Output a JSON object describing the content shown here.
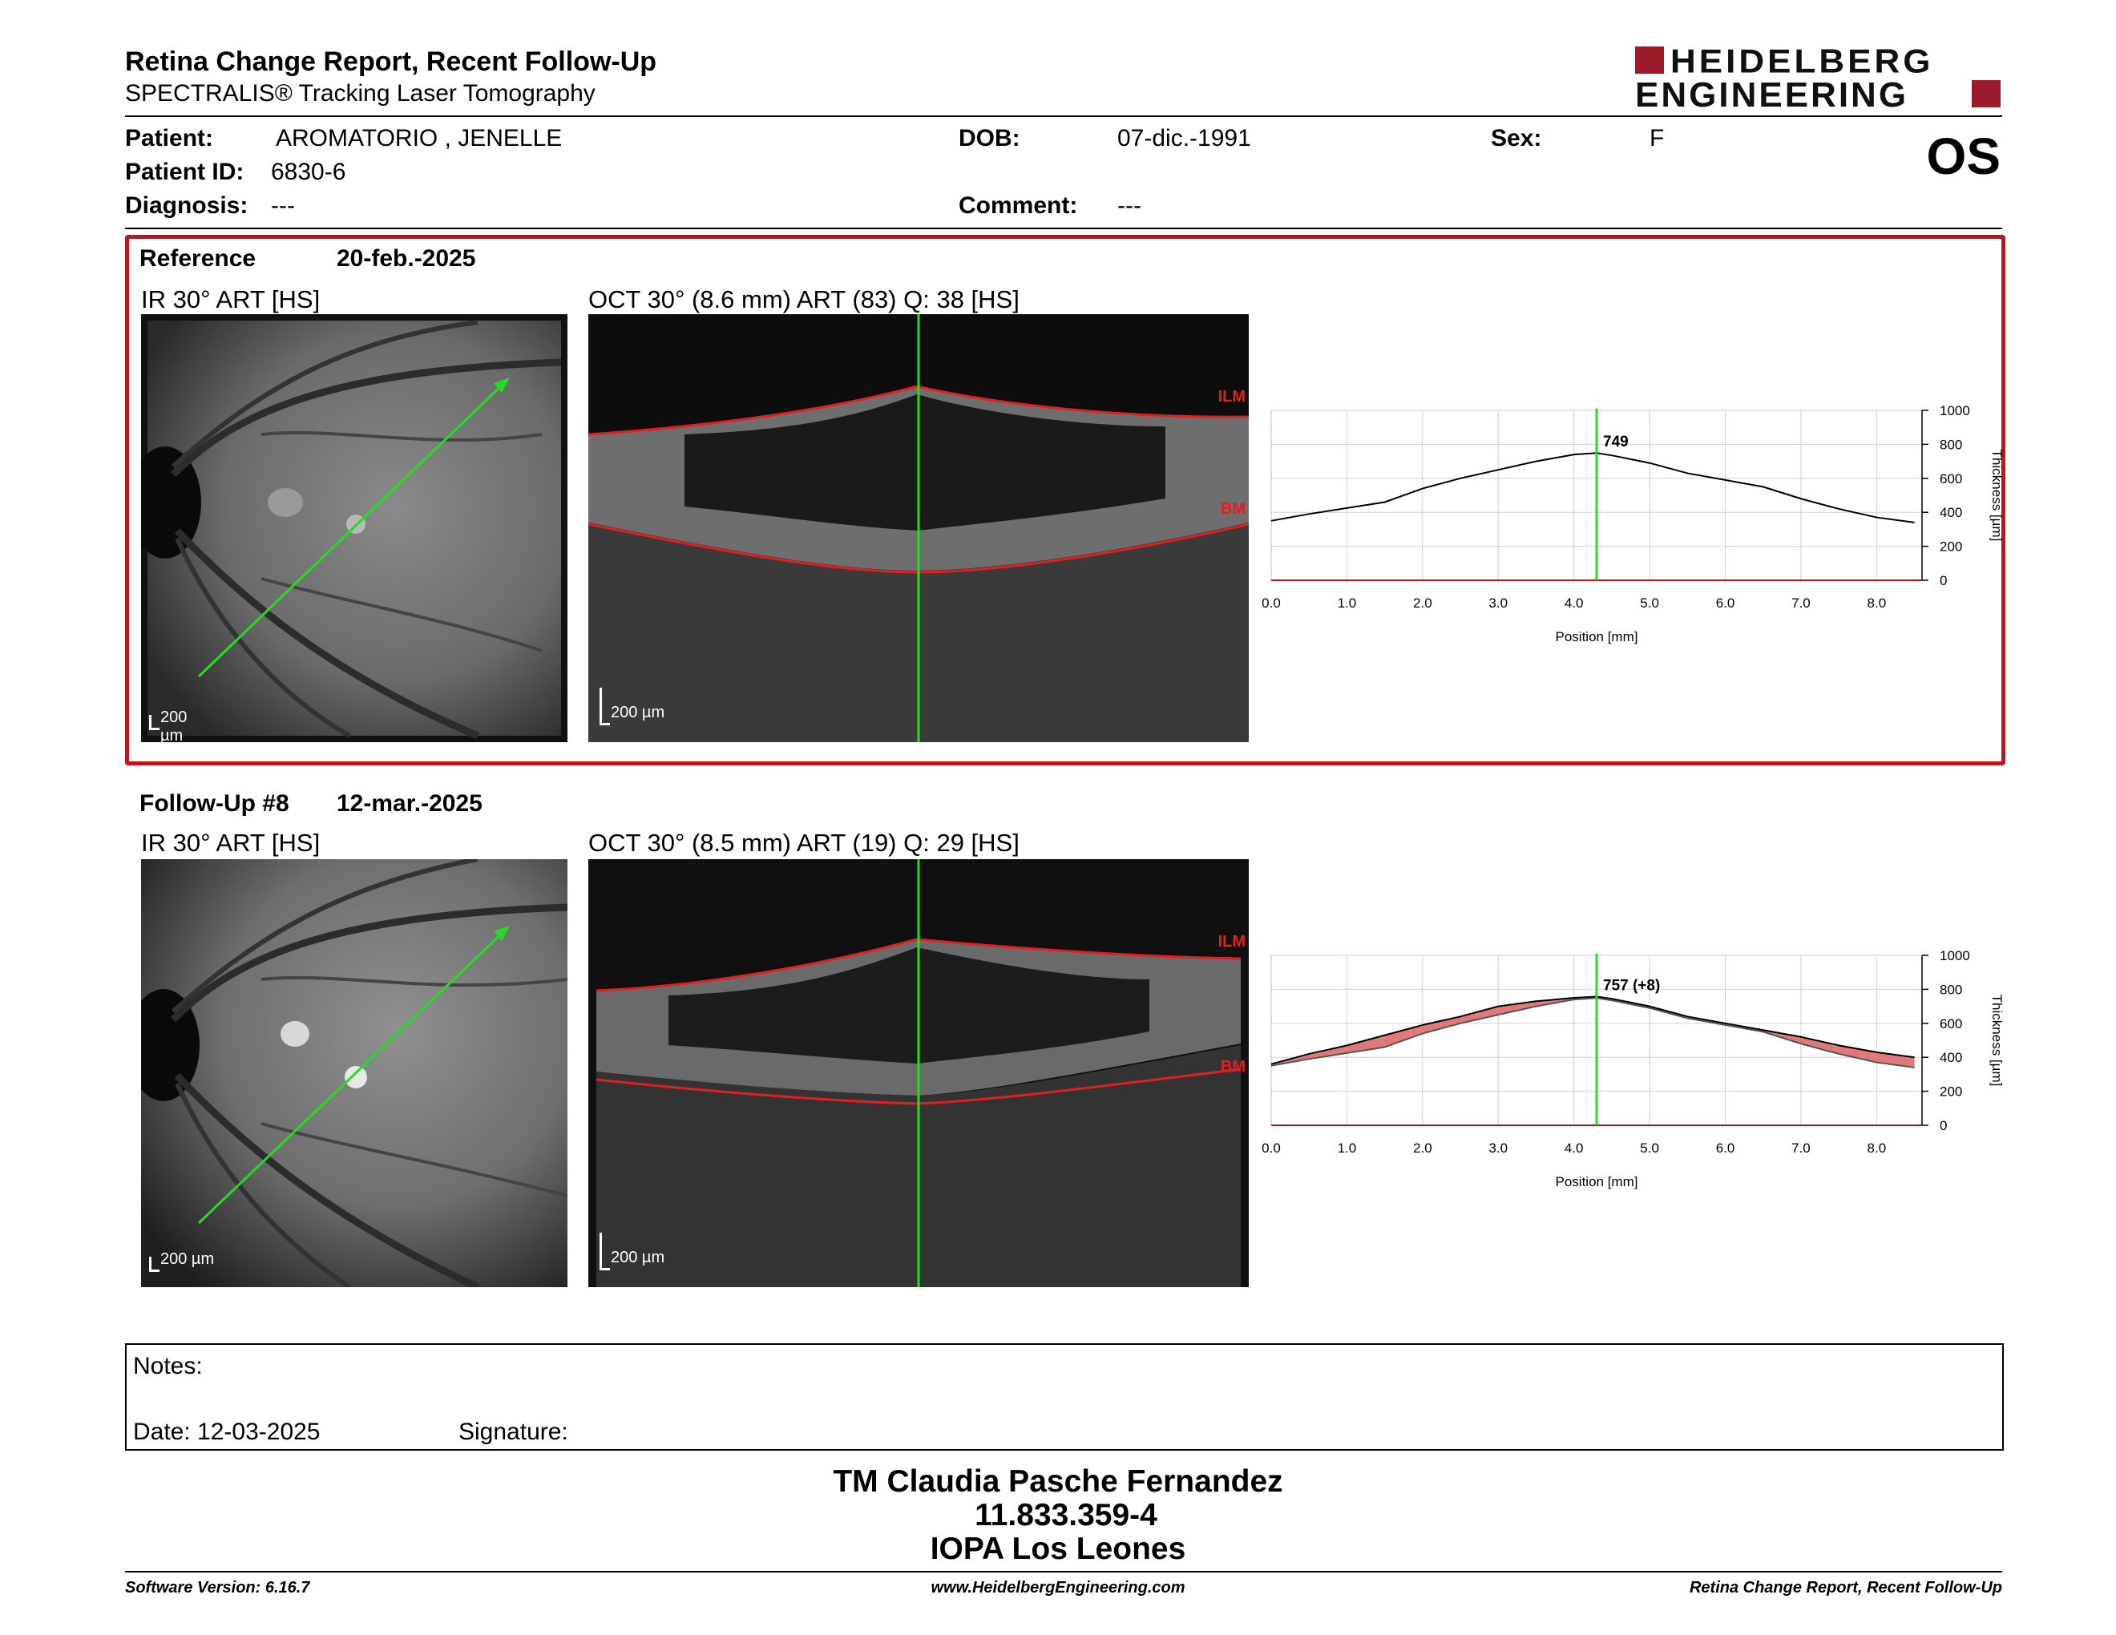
{
  "header": {
    "title": "Retina Change Report, Recent Follow-Up",
    "subtitle": "SPECTRALIS® Tracking Laser Tomography",
    "logo_line1": "HEIDELBERG",
    "logo_line2": "ENGINEERING",
    "eye": "OS"
  },
  "patient": {
    "name_label": "Patient:",
    "name": "AROMATORIO , JENELLE",
    "id_label": "Patient ID:",
    "id": "6830-6",
    "diagnosis_label": "Diagnosis:",
    "diagnosis": "---",
    "dob_label": "DOB:",
    "dob": "07-dic.-1991",
    "comment_label": "Comment:",
    "comment": "---",
    "sex_label": "Sex:",
    "sex": "F"
  },
  "reference": {
    "label": "Reference",
    "date": "20-feb.-2025",
    "ir_title": "IR 30° ART [HS]",
    "oct_title": "OCT 30° (8.6 mm) ART (83) Q: 38 [HS]",
    "scale": "200 µm",
    "ilm": "ILM",
    "bm": "BM",
    "thickness_label": "749"
  },
  "followup": {
    "label": "Follow-Up #8",
    "date": "12-mar.-2025",
    "ir_title": "IR 30° ART [HS]",
    "oct_title": "OCT 30° (8.5 mm) ART (19) Q: 29 [HS]",
    "scale": "200 µm",
    "ilm": "ILM",
    "bm": "BM",
    "thickness_label": "757 (+8)"
  },
  "chart_data": [
    {
      "type": "line",
      "xlabel": "Position [mm]",
      "ylabel": "Thickness [µm]",
      "xlim": [
        0,
        8.6
      ],
      "ylim": [
        0,
        1000
      ],
      "xticks": [
        "0.0",
        "1.0",
        "2.0",
        "3.0",
        "4.0",
        "5.0",
        "6.0",
        "7.0",
        "8.0"
      ],
      "yticks": [
        "0",
        "200",
        "400",
        "600",
        "800",
        "1000"
      ],
      "cursor_x": 4.3,
      "annotation": "749",
      "series": [
        {
          "x": [
            0,
            0.5,
            1,
            1.5,
            2,
            2.5,
            3,
            3.5,
            4,
            4.3,
            4.5,
            5,
            5.5,
            6,
            6.5,
            7,
            7.5,
            8,
            8.5
          ],
          "y": [
            350,
            390,
            425,
            460,
            540,
            600,
            650,
            700,
            740,
            749,
            735,
            690,
            630,
            590,
            550,
            480,
            420,
            370,
            340
          ]
        }
      ]
    },
    {
      "type": "line",
      "xlabel": "Position [mm]",
      "ylabel": "Thickness [µm]",
      "xlim": [
        0,
        8.6
      ],
      "ylim": [
        0,
        1000
      ],
      "xticks": [
        "0.0",
        "1.0",
        "2.0",
        "3.0",
        "4.0",
        "5.0",
        "6.0",
        "7.0",
        "8.0"
      ],
      "yticks": [
        "0",
        "200",
        "400",
        "600",
        "800",
        "1000"
      ],
      "cursor_x": 4.3,
      "annotation": "757 (+8)",
      "series": [
        {
          "x": [
            0,
            0.5,
            1,
            1.5,
            2,
            2.5,
            3,
            3.5,
            4,
            4.3,
            4.5,
            5,
            5.5,
            6,
            6.5,
            7,
            7.5,
            8,
            8.5
          ],
          "y": [
            360,
            420,
            470,
            530,
            590,
            640,
            700,
            730,
            750,
            757,
            745,
            700,
            640,
            600,
            560,
            520,
            470,
            430,
            400
          ]
        },
        {
          "x": [
            0,
            0.5,
            1,
            1.5,
            2,
            2.5,
            3,
            3.5,
            4,
            4.3,
            4.5,
            5,
            5.5,
            6,
            6.5,
            7,
            7.5,
            8,
            8.5
          ],
          "y": [
            350,
            390,
            425,
            460,
            540,
            600,
            650,
            700,
            740,
            749,
            735,
            690,
            630,
            590,
            550,
            480,
            420,
            370,
            340
          ]
        }
      ]
    }
  ],
  "notes": {
    "label": "Notes:",
    "date_label": "Date: 12-03-2025",
    "signature_label": "Signature:"
  },
  "signer": {
    "name": "TM Claudia Pasche Fernandez",
    "id": "11.833.359-4",
    "org": "IOPA Los Leones"
  },
  "footer": {
    "version": "Software Version: 6.16.7",
    "url": "www.HeidelbergEngineering.com",
    "title": "Retina Change Report, Recent Follow-Up"
  },
  "colors": {
    "accent": "#c0141c",
    "cursor": "#22dd22",
    "diff_fill": "#e07a7a"
  }
}
